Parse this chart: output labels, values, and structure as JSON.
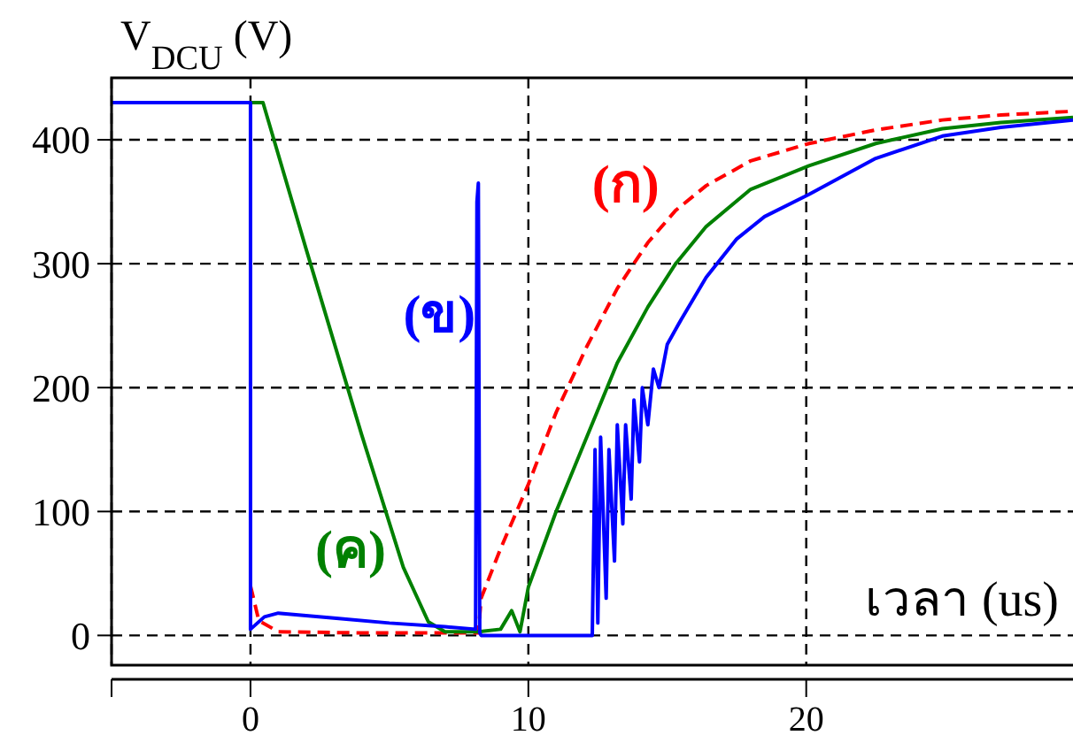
{
  "chart_data": {
    "type": "line",
    "xlabel": "เวลา (us)",
    "ylabel": "V$_{DCU}$ (V)",
    "xlim": [
      -5,
      29.6
    ],
    "ylim": [
      -24,
      450
    ],
    "xticks": [
      {
        "value": -5,
        "label": null
      },
      0,
      10,
      20
    ],
    "yticks": [
      0,
      100,
      200,
      300,
      400
    ],
    "grid": true,
    "series": [
      {
        "name": "(ก)",
        "color": "#ff0000",
        "line_style": "dashed",
        "x": [
          0,
          0.3,
          1,
          4,
          8.2,
          8.3,
          9,
          10,
          11,
          12.1,
          13.2,
          14.3,
          15.3,
          16.4,
          18,
          20.1,
          22.5,
          24.9,
          27,
          29.6
        ],
        "values": [
          40,
          12,
          3,
          2,
          2,
          30,
          70,
          122,
          180,
          233,
          280,
          317,
          343,
          363,
          383,
          397,
          408,
          416,
          420,
          423
        ]
      },
      {
        "name": "(ค)",
        "color": "#008000",
        "line_style": "solid",
        "x": [
          0,
          0.45,
          2,
          4,
          5.5,
          6.4,
          7,
          8.2,
          9,
          9.4,
          9.7,
          10,
          11,
          12.1,
          13.2,
          14.3,
          15.3,
          16.4,
          18,
          20.1,
          22.5,
          24.9,
          27,
          29.6
        ],
        "values": [
          430,
          430,
          312,
          162,
          55,
          11,
          3,
          3,
          5,
          20,
          3,
          39,
          100,
          160,
          220,
          265,
          300,
          330,
          360,
          379,
          397,
          409,
          414,
          418
        ]
      },
      {
        "name": "(ข)",
        "color": "#0000ff",
        "line_style": "solid",
        "x": [
          -5,
          0,
          0,
          0.5,
          1,
          3,
          5,
          7,
          8.1,
          8.15,
          8.2,
          8.25,
          8.3,
          12.3,
          12.4,
          12.5,
          12.6,
          12.8,
          12.9,
          13.1,
          13.2,
          13.4,
          13.5,
          13.7,
          13.8,
          14,
          14.1,
          14.3,
          14.5,
          14.7,
          15,
          15.5,
          16.4,
          17.5,
          18.5,
          20.1,
          22.5,
          24.9,
          27,
          29.6
        ],
        "values": [
          430,
          430,
          5,
          15,
          18,
          14,
          10,
          7,
          5,
          350,
          365,
          2,
          0,
          0,
          150,
          10,
          160,
          30,
          150,
          60,
          170,
          90,
          170,
          110,
          190,
          140,
          200,
          170,
          215,
          200,
          235,
          255,
          289,
          320,
          338,
          356,
          385,
          403,
          410,
          416
        ]
      }
    ]
  }
}
